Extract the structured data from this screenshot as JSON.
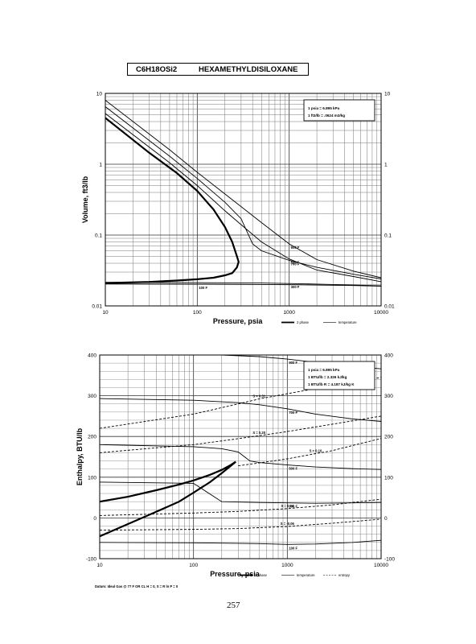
{
  "header": {
    "formula": "C6H18OSi2",
    "compound": "HEXAMETHYLDISILOXANE"
  },
  "page_number": "257",
  "chart_data": [
    {
      "type": "line",
      "xlabel": "Pressure,  psia",
      "ylabel": "Volume, ft^3/lb",
      "x_scale": "log",
      "y_scale": "log",
      "xlim": [
        10,
        10000
      ],
      "ylim": [
        0.01,
        10
      ],
      "x_tick_labels": [
        "10",
        "100",
        "1000",
        "10000"
      ],
      "y_tick_labels_left": [
        "10",
        "1",
        "0.1",
        "0.01"
      ],
      "y_tick_labels_right": [
        "10",
        "1",
        "0.1",
        "0.01"
      ],
      "grid": true,
      "info_box": [
        "1 psia  =  6.895 kPa",
        "1 ft^3/lb  =  .0624 m^3/kg"
      ],
      "legend": [
        "2 phase",
        "temperature"
      ],
      "legend_position": "bottom-right",
      "series": [
        {
          "name": "2 phase",
          "style": "bold",
          "x": [
            10,
            30,
            60,
            100,
            150,
            200,
            240,
            270,
            282,
            270,
            240,
            200,
            150,
            100,
            60,
            30,
            10
          ],
          "y": [
            4.5,
            1.45,
            0.75,
            0.42,
            0.23,
            0.13,
            0.08,
            0.05,
            0.042,
            0.035,
            0.029,
            0.027,
            0.025,
            0.0238,
            0.0228,
            0.0218,
            0.021
          ]
        },
        {
          "name": "100 F",
          "label": "100 F",
          "x": [
            10,
            100,
            1000,
            5000,
            10000
          ],
          "y": [
            0.0205,
            0.0203,
            0.0199,
            0.0194,
            0.019
          ]
        },
        {
          "name": "300 F",
          "label": "300 F",
          "x": [
            10,
            100,
            200,
            500,
            1000,
            2000,
            5000,
            10000
          ],
          "y": [
            0.0215,
            0.0213,
            0.0212,
            0.021,
            0.0207,
            0.0203,
            0.0197,
            0.0192
          ]
        },
        {
          "name": "500 F",
          "label": "500 F",
          "x": [
            10,
            50,
            100,
            200,
            300,
            500,
            1000,
            2000,
            5000,
            10000
          ],
          "y": [
            5.2,
            1.05,
            0.5,
            0.22,
            0.14,
            0.08,
            0.046,
            0.032,
            0.026,
            0.022
          ]
        },
        {
          "name": "700 F",
          "label": "700 F",
          "x": [
            10,
            50,
            100,
            200,
            300,
            350,
            400,
            500,
            1000,
            2000,
            5000,
            10000
          ],
          "y": [
            6.5,
            1.3,
            0.63,
            0.29,
            0.17,
            0.11,
            0.075,
            0.06,
            0.044,
            0.035,
            0.028,
            0.024
          ]
        },
        {
          "name": "900 F",
          "label": "900 F",
          "x": [
            10,
            50,
            100,
            200,
            500,
            1000,
            2000,
            5000,
            10000
          ],
          "y": [
            8,
            1.6,
            0.77,
            0.38,
            0.15,
            0.075,
            0.045,
            0.031,
            0.025
          ]
        }
      ]
    },
    {
      "type": "line",
      "xlabel": "Pressure,  psia",
      "ylabel": "Enthalpy, BTU/lb",
      "x_scale": "log",
      "y_scale": "linear",
      "xlim": [
        10,
        10000
      ],
      "ylim": [
        -100,
        400
      ],
      "x_tick_labels": [
        "10",
        "100",
        "1000",
        "10000"
      ],
      "y_tick_labels_left": [
        "400",
        "300",
        "200",
        "100",
        "0",
        "-100"
      ],
      "y_tick_labels_right": [
        "400",
        "300",
        "200",
        "100",
        "0",
        "-100"
      ],
      "grid": true,
      "info_box": [
        "1 psia  =  6.895 kPa",
        "1 BTU/lb  =  2.326 kJ/kg",
        "1 BTU/lb R  =  4.187 kJ/kg K"
      ],
      "legend": [
        "2 phase",
        "temperature",
        "entropy"
      ],
      "legend_position": "bottom-right",
      "footnote": "Datum: Ideal Gas @ 77 F OR CL  H = 0,  S = R ln P = 0",
      "series": [
        {
          "name": "2 phase",
          "style": "bold",
          "x": [
            10,
            20,
            40,
            70,
            100,
            150,
            200,
            250,
            282,
            250,
            200,
            150,
            100,
            70,
            40,
            20,
            10
          ],
          "y": [
            40,
            52,
            68,
            82,
            92,
            106,
            118,
            130,
            138,
            128,
            110,
            88,
            62,
            40,
            15,
            -15,
            -45
          ]
        },
        {
          "name": "900 F",
          "label": "900 F",
          "x": [
            10,
            100,
            200,
            500,
            1000,
            2000,
            5000,
            10000
          ],
          "y": [
            405,
            402,
            400,
            396,
            390,
            382,
            372,
            366
          ]
        },
        {
          "name": "700 F",
          "label": "700 F",
          "x": [
            10,
            100,
            300,
            500,
            1000,
            2000,
            5000,
            10000
          ],
          "y": [
            293,
            289,
            283,
            278,
            268,
            255,
            243,
            237
          ]
        },
        {
          "name": "500 F",
          "label": "500 F",
          "x": [
            10,
            100,
            200,
            300,
            350,
            400,
            500,
            1000,
            2000,
            5000,
            10000
          ],
          "y": [
            180,
            175,
            170,
            162,
            150,
            140,
            136,
            130,
            125,
            121,
            119
          ]
        },
        {
          "name": "300 F",
          "label": "300 F",
          "x": [
            10,
            50,
            100,
            200,
            500,
            1000,
            2000,
            5000,
            10000
          ],
          "y": [
            88,
            86,
            85,
            40,
            38,
            37,
            36,
            37,
            38
          ]
        },
        {
          "name": "100 F",
          "label": "100 F",
          "x": [
            10,
            100,
            500,
            1000,
            2000,
            5000,
            10000
          ],
          "y": [
            -60,
            -61,
            -63,
            -65,
            -64,
            -60,
            -55
          ]
        },
        {
          "name": "S = 0.31",
          "label": "S = 0.31",
          "style": "dashed",
          "x": [
            10,
            100,
            300,
            500,
            1000,
            3000,
            10000
          ],
          "y": [
            220,
            255,
            280,
            292,
            305,
            325,
            345
          ]
        },
        {
          "name": "S = 0.20",
          "label": "S = 0.20",
          "style": "dashed",
          "x": [
            10,
            100,
            250,
            500,
            1000,
            3000,
            10000
          ],
          "y": [
            160,
            180,
            192,
            202,
            212,
            230,
            250
          ]
        },
        {
          "name": "S = 0.10",
          "label": "S = 0.10",
          "style": "dashed",
          "x": [
            300,
            500,
            1000,
            2000,
            3000,
            5000,
            10000
          ],
          "y": [
            128,
            135,
            145,
            158,
            165,
            178,
            195
          ]
        },
        {
          "name": "S = 0.04",
          "label": "S = 0.04",
          "style": "dashed",
          "x": [
            10,
            100,
            300,
            1000,
            3000,
            10000
          ],
          "y": [
            6,
            12,
            16,
            23,
            32,
            46
          ]
        },
        {
          "name": "S = -0.06",
          "label": "S = -0.06",
          "style": "dashed",
          "x": [
            10,
            100,
            300,
            1000,
            3000,
            10000
          ],
          "y": [
            -30,
            -28,
            -26,
            -21,
            -13,
            -3
          ]
        }
      ]
    }
  ]
}
